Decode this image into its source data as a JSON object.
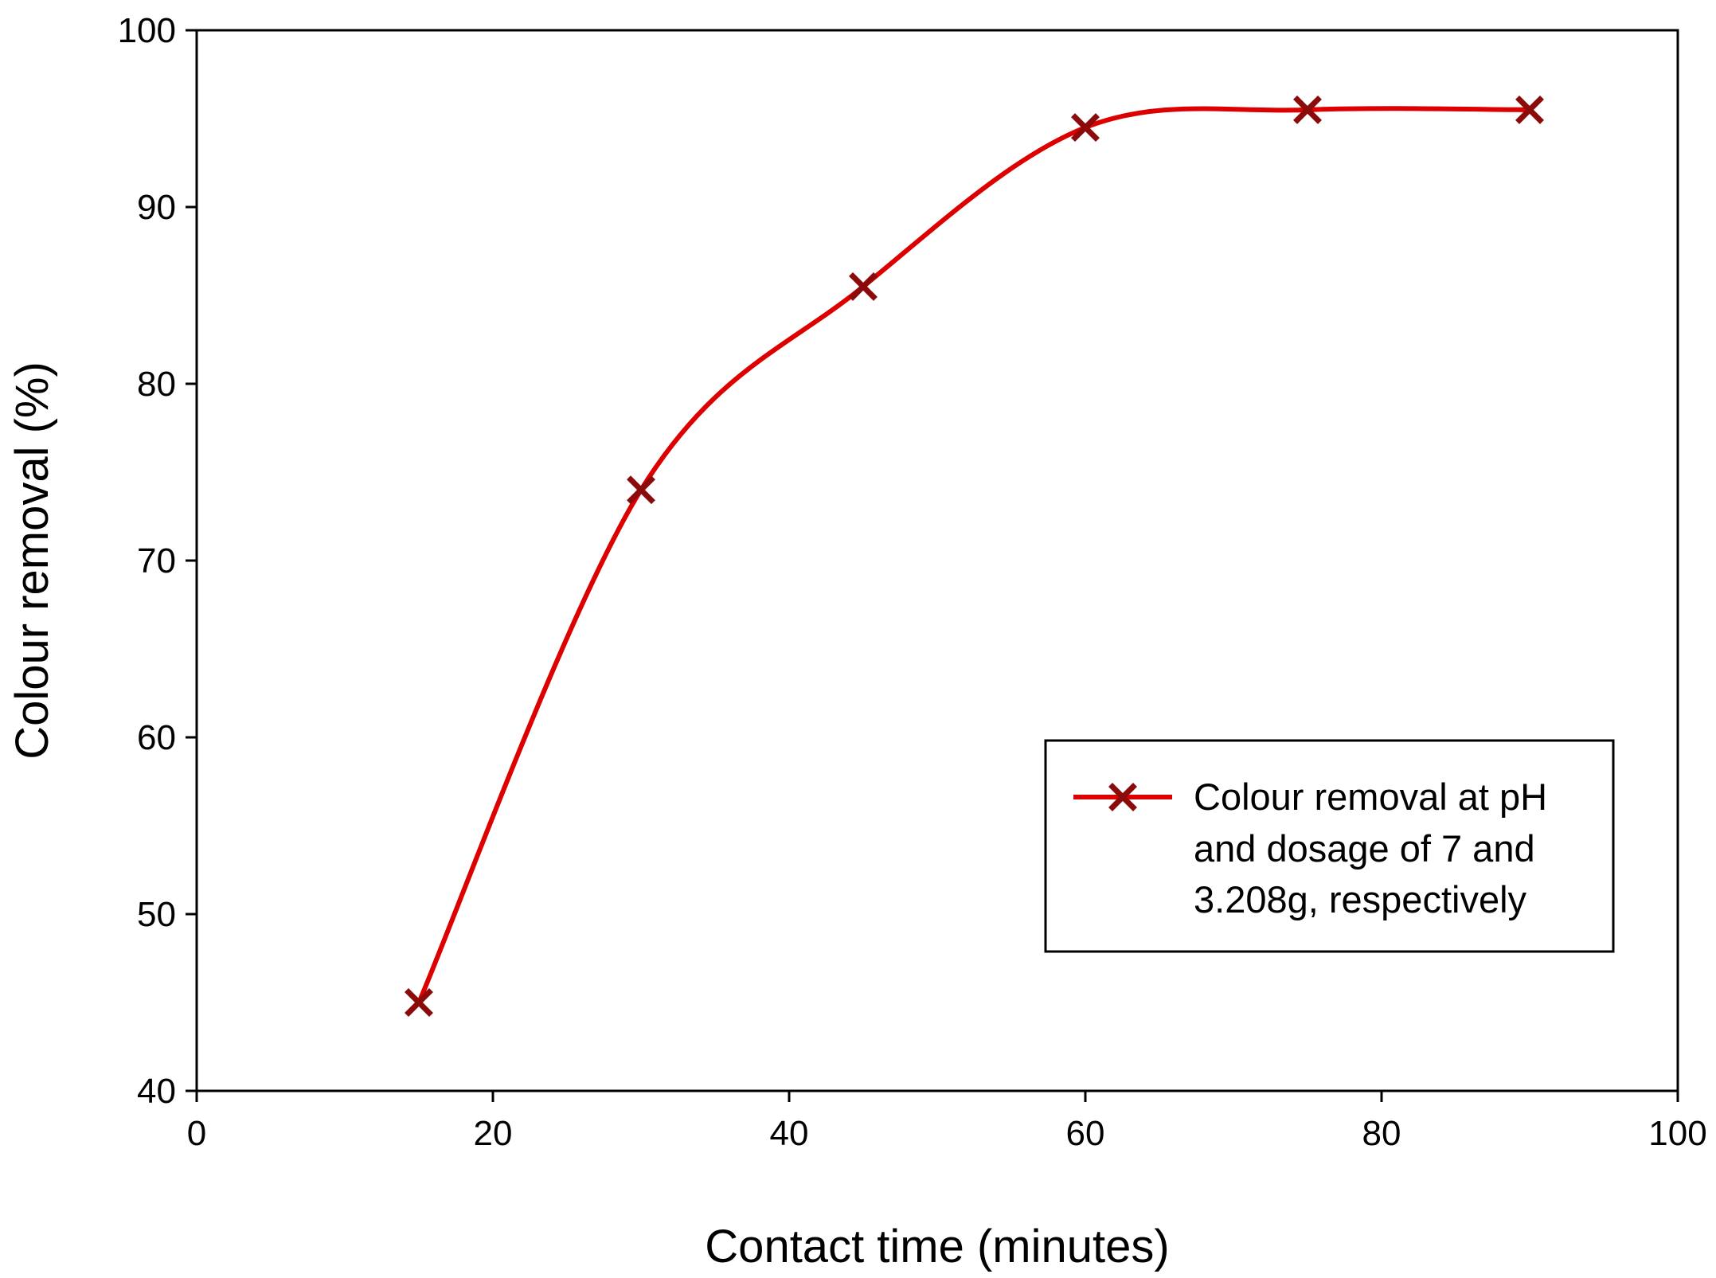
{
  "chart_data": {
    "type": "line",
    "title": "",
    "xlabel": "Contact time (minutes)",
    "ylabel": "Colour removal (%)",
    "xlim": [
      0,
      100
    ],
    "ylim": [
      40,
      100
    ],
    "x_ticks": [
      0,
      20,
      40,
      60,
      80,
      100
    ],
    "y_ticks": [
      40,
      50,
      60,
      70,
      80,
      90,
      100
    ],
    "grid": false,
    "legend_position": "center-right",
    "series": [
      {
        "name": "Colour removal at pH and dosage of 7 and 3.208g, respectively",
        "legend_lines": [
          "Colour removal at pH",
          "and dosage of 7 and",
          "3.208g, respectively"
        ],
        "x": [
          15,
          30,
          45,
          60,
          75,
          90
        ],
        "y": [
          45,
          74,
          85.5,
          94.5,
          95.5,
          95.5
        ],
        "line_color": "#dd0000",
        "marker": "x",
        "marker_color": "#8b0a0a",
        "smooth": true
      }
    ]
  }
}
